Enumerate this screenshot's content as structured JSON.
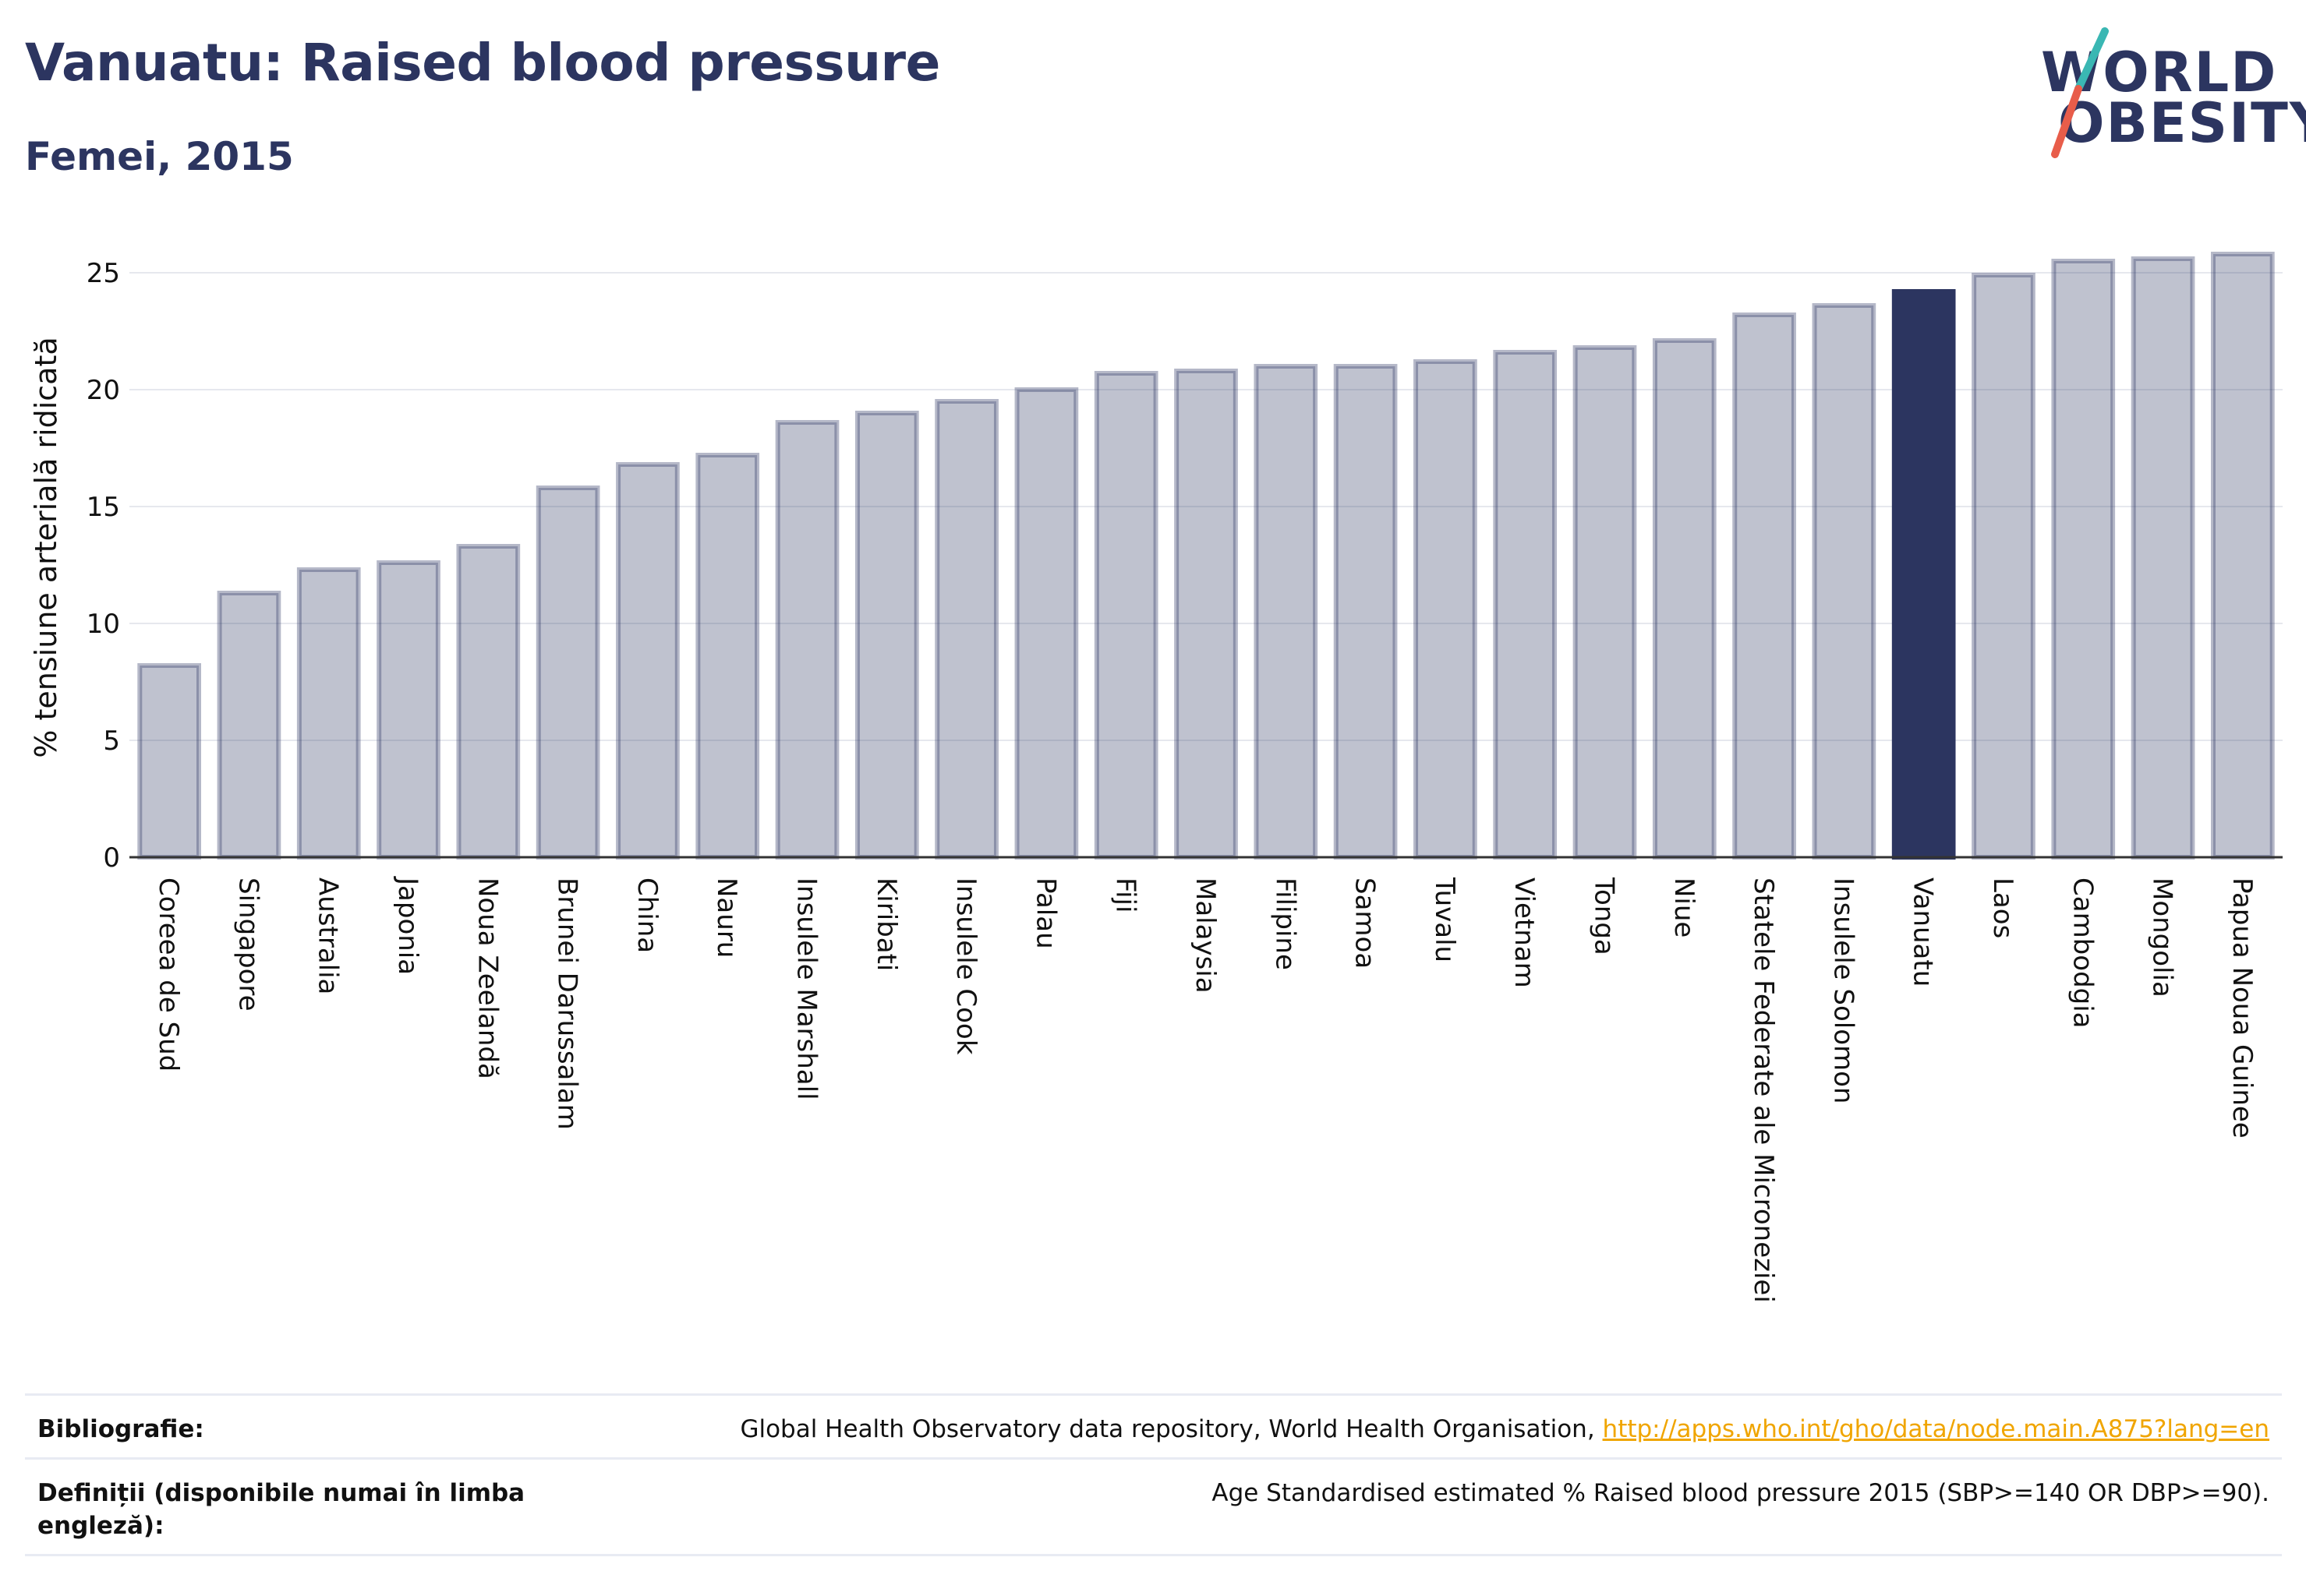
{
  "header": {
    "title": "Vanuatu: Raised blood pressure",
    "subtitle": "Femei, 2015"
  },
  "logo": {
    "line1": "WORLD",
    "line2": "OBESITY",
    "accent_colors": [
      "#3ab7b3",
      "#e85d4a"
    ]
  },
  "chart_data": {
    "type": "bar",
    "title": "Vanuatu: Raised blood pressure",
    "subtitle": "Femei, 2015",
    "ylabel": "% tensiune arterială ridicată",
    "xlabel": "",
    "ylim": [
      0,
      26.5
    ],
    "yticks": [
      0,
      5,
      10,
      15,
      20,
      25
    ],
    "grid": true,
    "highlight": "Vanuatu",
    "colors": {
      "default": "#2c3560",
      "default_opacity": 0.3,
      "highlight": "#2c3560"
    },
    "categories": [
      "Coreea de Sud",
      "Singapore",
      "Australia",
      "Japonia",
      "Noua Zeelandă",
      "Brunei Darussalam",
      "China",
      "Nauru",
      "Insulele Marshall",
      "Kiribati",
      "Insulele Cook",
      "Palau",
      "Fiji",
      "Malaysia",
      "Filipine",
      "Samoa",
      "Tuvalu",
      "Vietnam",
      "Tonga",
      "Niue",
      "Statele Federate ale Microneziei",
      "Insulele Solomon",
      "Vanuatu",
      "Laos",
      "Cambodgia",
      "Mongolia",
      "Papua Noua Guinee"
    ],
    "values": [
      8.2,
      11.3,
      12.3,
      12.6,
      13.3,
      15.8,
      16.8,
      17.2,
      18.6,
      19.0,
      19.5,
      20.0,
      20.7,
      20.8,
      21.0,
      21.0,
      21.2,
      21.6,
      21.8,
      22.1,
      23.2,
      23.6,
      24.2,
      24.9,
      25.5,
      25.6,
      25.8
    ]
  },
  "footer": {
    "bibliography_label": "Bibliografie:",
    "bibliography_text": "Global Health Observatory data repository, World Health Organisation, ",
    "bibliography_link": "http://apps.who.int/gho/data/node.main.A875?lang=en",
    "definitions_label": "Definiții (disponibile numai în limba engleză):",
    "definitions_text": "Age Standardised estimated % Raised blood pressure 2015 (SBP>=140 OR DBP>=90)."
  }
}
